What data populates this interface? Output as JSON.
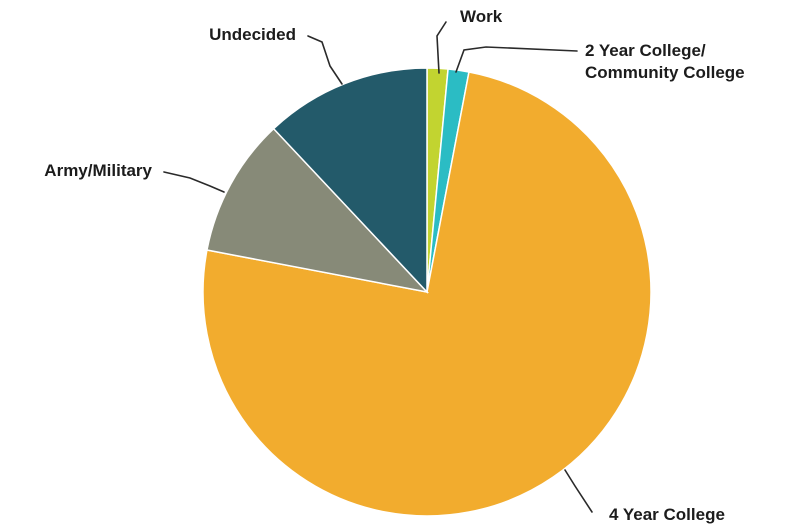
{
  "chart_data": {
    "type": "pie",
    "title": "",
    "start_angle_deg": 0,
    "direction": "clockwise",
    "slices": [
      {
        "label": "Work",
        "label_lines": [
          "Work"
        ],
        "value": 1.5,
        "color": "#c2d430"
      },
      {
        "label": "2 Year College/ Community College",
        "label_lines": [
          "2 Year College/",
          "Community College"
        ],
        "value": 1.5,
        "color": "#2bbcc4"
      },
      {
        "label": "4 Year College",
        "label_lines": [
          "4 Year College"
        ],
        "value": 75,
        "color": "#f2ac2e"
      },
      {
        "label": "Army/Military",
        "label_lines": [
          "Army/Military"
        ],
        "value": 10,
        "color": "#878a78"
      },
      {
        "label": "Undecided",
        "label_lines": [
          "Undecided"
        ],
        "value": 12,
        "color": "#235a6a"
      }
    ],
    "legend": "none",
    "data_labels": "category names with leader lines"
  }
}
